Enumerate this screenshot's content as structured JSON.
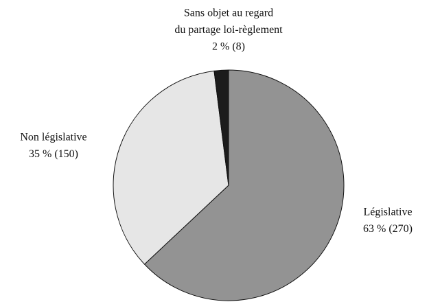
{
  "chart_data": {
    "type": "pie",
    "categories": [
      [
        "Législative"
      ],
      [
        "Non législative"
      ],
      [
        "Sans objet au regard",
        "du partage loi-règlement"
      ]
    ],
    "values": [
      63,
      35,
      2
    ],
    "value_labels": [
      "63 % (270)",
      "35 % (150)",
      "2 % (8)"
    ],
    "colors": [
      "#939393",
      "#e6e6e6",
      "#1c1c1c"
    ]
  }
}
